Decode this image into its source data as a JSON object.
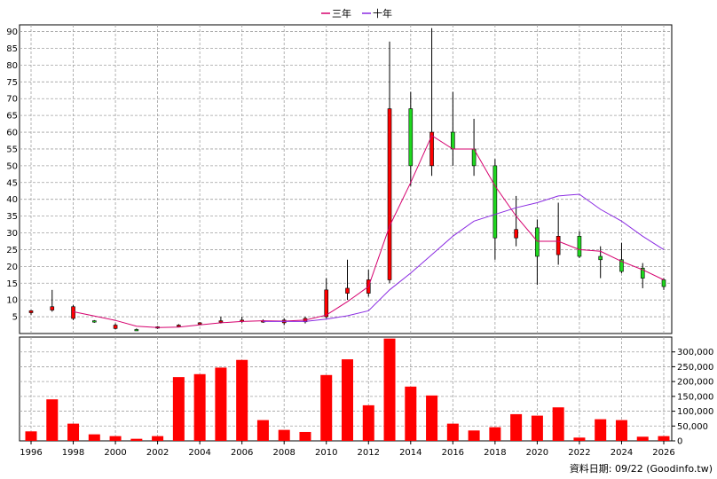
{
  "legend": [
    {
      "label": "三年",
      "color": "#d6006e"
    },
    {
      "label": "十年",
      "color": "#8a2be2"
    }
  ],
  "footer_text": "資料日期: 09/22  (Goodinfo.tw)",
  "colors": {
    "up": "#ff0000",
    "down": "#1fd81f",
    "grid": "#a0a0a0",
    "volume": "#ff0000"
  },
  "chart_data": [
    {
      "type": "candlestick",
      "title": "",
      "ylim": [
        0,
        92
      ],
      "yticks": [
        5,
        10,
        15,
        20,
        25,
        30,
        35,
        40,
        45,
        50,
        55,
        60,
        65,
        70,
        75,
        80,
        85,
        90
      ],
      "grid": true,
      "legend_position": "top-center",
      "x": [
        1996,
        1997,
        1998,
        1999,
        2000,
        2001,
        2002,
        2003,
        2004,
        2005,
        2006,
        2007,
        2008,
        2009,
        2010,
        2011,
        2012,
        2013,
        2014,
        2015,
        2016,
        2017,
        2018,
        2019,
        2020,
        2021,
        2022,
        2023,
        2024,
        2025,
        2026
      ],
      "ohlc": [
        [
          6.2,
          7.0,
          5.6,
          6.8
        ],
        [
          7.0,
          13.0,
          6.5,
          8.0
        ],
        [
          4.5,
          8.5,
          4.0,
          8.0
        ],
        [
          3.8,
          4.0,
          3.2,
          3.5
        ],
        [
          1.5,
          3.0,
          1.2,
          2.5
        ],
        [
          1.2,
          1.5,
          0.8,
          1.0
        ],
        [
          1.8,
          2.2,
          1.4,
          2.0
        ],
        [
          2.2,
          2.8,
          2.0,
          2.5
        ],
        [
          3.0,
          3.4,
          2.6,
          3.2
        ],
        [
          3.5,
          5.0,
          3.0,
          3.8
        ],
        [
          3.8,
          5.0,
          3.2,
          4.0
        ],
        [
          3.6,
          4.2,
          3.2,
          3.8
        ],
        [
          3.2,
          4.5,
          2.5,
          4.0
        ],
        [
          3.5,
          5.0,
          3.0,
          4.5
        ],
        [
          5.0,
          16.5,
          4.5,
          13.0
        ],
        [
          12.0,
          22.0,
          10.0,
          13.5
        ],
        [
          12.0,
          19.0,
          11.0,
          16.0
        ],
        [
          16.0,
          87.0,
          15.0,
          67.0
        ],
        [
          67.0,
          72.0,
          44.0,
          50.0
        ],
        [
          50.0,
          91.0,
          47.0,
          60.0
        ],
        [
          60.0,
          72.0,
          50.0,
          55.0
        ],
        [
          55.0,
          64.0,
          47.0,
          50.0
        ],
        [
          50.0,
          52.0,
          22.0,
          28.5
        ],
        [
          28.5,
          41.0,
          26.0,
          31.0
        ],
        [
          31.5,
          34.0,
          14.5,
          23.0
        ],
        [
          23.5,
          39.0,
          20.5,
          29.0
        ],
        [
          29.0,
          30.5,
          22.5,
          23.0
        ],
        [
          23.0,
          26.0,
          16.5,
          22.0
        ],
        [
          22.0,
          27.0,
          18.0,
          18.5
        ],
        [
          19.5,
          21.0,
          13.5,
          16.5
        ],
        [
          16.0,
          16.5,
          13.0,
          14.0
        ]
      ],
      "series": [
        {
          "name": "三年",
          "values": [
            null,
            null,
            6.5,
            5.2,
            3.9,
            2.2,
            1.8,
            1.9,
            2.6,
            3.2,
            3.6,
            3.8,
            3.7,
            4.0,
            5.5,
            9.5,
            14.0,
            32.0,
            45.0,
            59.0,
            55.0,
            55.0,
            44.0,
            35.0,
            27.5,
            27.5,
            25.0,
            24.5,
            21.5,
            19.0,
            16.0
          ]
        },
        {
          "name": "十年",
          "values": [
            null,
            null,
            null,
            null,
            null,
            null,
            null,
            null,
            null,
            null,
            null,
            3.6,
            3.6,
            3.6,
            4.3,
            5.3,
            6.8,
            13.0,
            18.0,
            23.5,
            29.0,
            33.5,
            35.5,
            37.5,
            39.0,
            41.0,
            41.5,
            37.0,
            33.5,
            29.0,
            25.0
          ]
        }
      ]
    },
    {
      "type": "bar",
      "title": "",
      "ylim": [
        0,
        350000
      ],
      "yticks": [
        0,
        50000,
        100000,
        150000,
        200000,
        250000,
        300000
      ],
      "ytick_labels": [
        "0",
        "50,000",
        "100,000",
        "150,000",
        "200,000",
        "250,000",
        "300,000"
      ],
      "x": [
        1996,
        1997,
        1998,
        1999,
        2000,
        2001,
        2002,
        2003,
        2004,
        2005,
        2006,
        2007,
        2008,
        2009,
        2010,
        2011,
        2012,
        2013,
        2014,
        2015,
        2016,
        2017,
        2018,
        2019,
        2020,
        2021,
        2022,
        2023,
        2024,
        2025,
        2026
      ],
      "values": [
        32000,
        140000,
        58000,
        22000,
        16000,
        7000,
        16000,
        215000,
        225000,
        247000,
        273000,
        70000,
        37000,
        30000,
        222000,
        275000,
        120000,
        345000,
        183000,
        153000,
        58000,
        35000,
        46000,
        90000,
        85000,
        113000,
        11000,
        73000,
        70000,
        14000,
        16000
      ],
      "xticks": [
        1996,
        1998,
        2000,
        2002,
        2004,
        2006,
        2008,
        2010,
        2012,
        2014,
        2016,
        2018,
        2020,
        2022,
        2024,
        2026
      ],
      "xtick_labels": [
        "1996",
        "1998",
        "2000",
        "2002",
        "2004",
        "2006",
        "2008",
        "2010",
        "2012",
        "2014",
        "2016",
        "2018",
        "2020",
        "2022",
        "2024",
        "2026"
      ]
    }
  ]
}
